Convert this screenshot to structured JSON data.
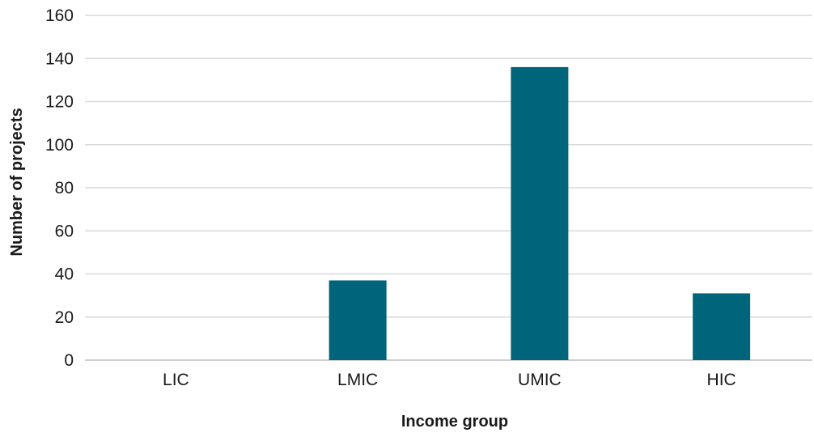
{
  "chart_data": {
    "type": "bar",
    "title": "",
    "xlabel": "Income group",
    "ylabel": "Number of projects",
    "categories": [
      "LIC",
      "LMIC",
      "UMIC",
      "HIC"
    ],
    "values": [
      0,
      37,
      136,
      31
    ],
    "ylim": [
      0,
      160
    ],
    "yticks": [
      0,
      20,
      40,
      60,
      80,
      100,
      120,
      140,
      160
    ],
    "grid": true,
    "legend": "none",
    "bar_color": "#00657a"
  }
}
